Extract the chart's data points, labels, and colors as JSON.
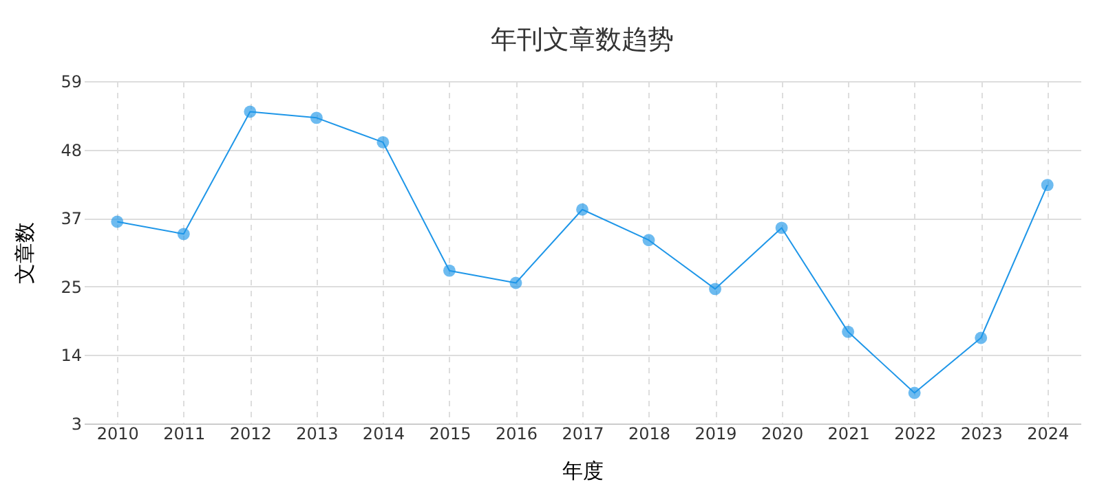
{
  "chart_data": {
    "type": "line",
    "title": "年刊文章数趋势",
    "xlabel": "年度",
    "ylabel": "文章数",
    "categories": [
      "2010",
      "2011",
      "2012",
      "2013",
      "2014",
      "2015",
      "2016",
      "2017",
      "2018",
      "2019",
      "2020",
      "2021",
      "2022",
      "2023",
      "2024"
    ],
    "series": [
      {
        "color": "#1e96e8",
        "values": [
          36,
          34,
          54,
          53,
          49,
          28,
          26,
          38,
          33,
          25,
          35,
          18,
          8,
          17,
          42
        ]
      }
    ],
    "ylim": [
      3,
      59
    ],
    "yticks": [
      {
        "value": 3,
        "label": "3"
      },
      {
        "value": 14.2,
        "label": "14"
      },
      {
        "value": 25.4,
        "label": "25"
      },
      {
        "value": 36.6,
        "label": "37"
      },
      {
        "value": 47.8,
        "label": "48"
      },
      {
        "value": 59,
        "label": "59"
      }
    ],
    "grid": true,
    "marker": "circle",
    "line_style": "solid"
  }
}
